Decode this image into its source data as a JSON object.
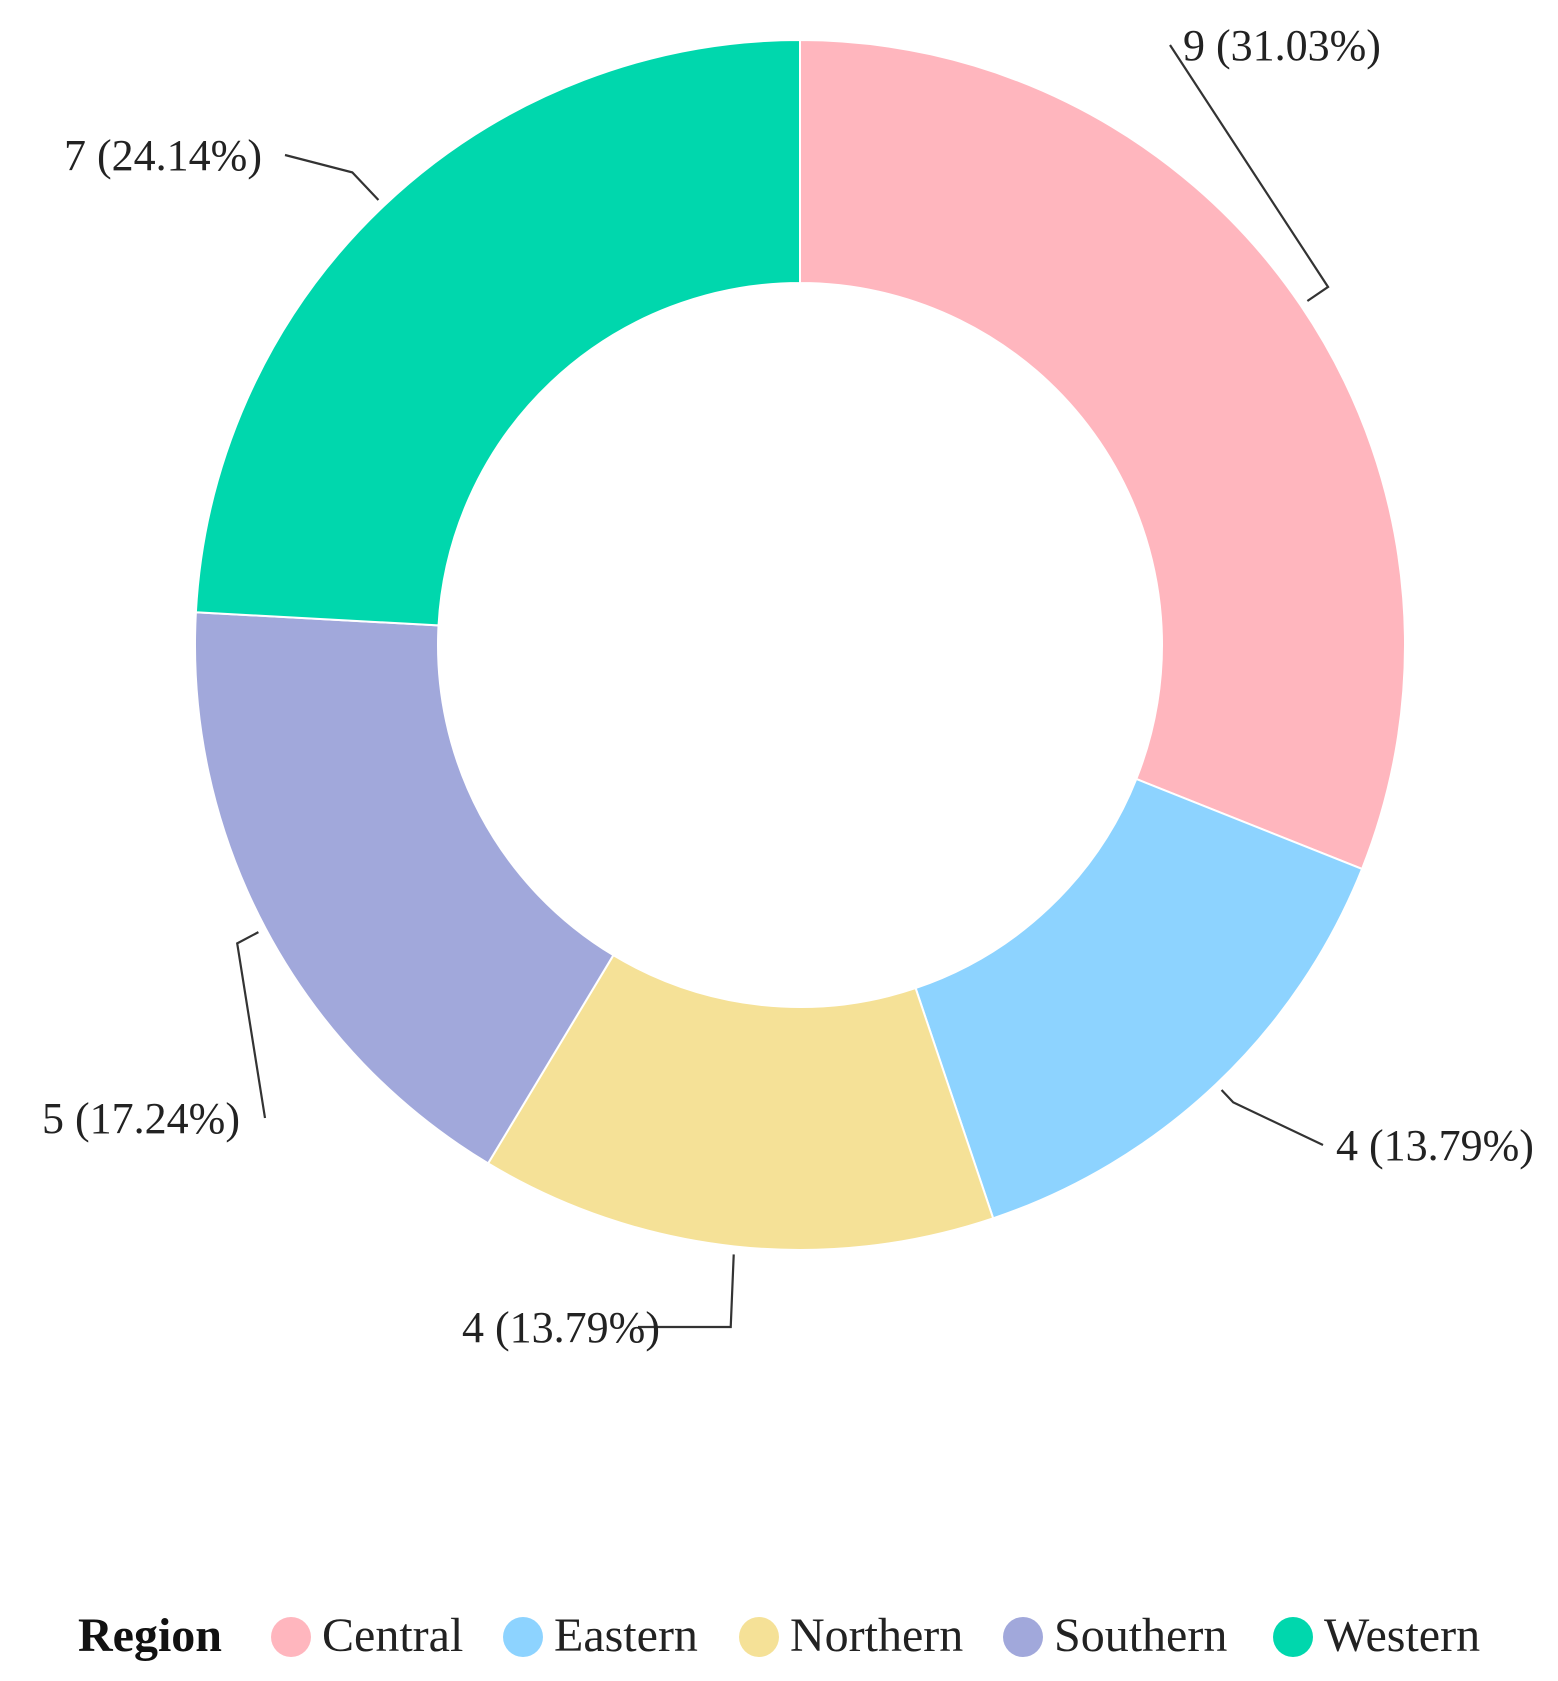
{
  "chart_data": {
    "type": "pie",
    "variant": "donut",
    "legend_title": "Region",
    "legend_position": "bottom",
    "categories": [
      "Central",
      "Eastern",
      "Northern",
      "Southern",
      "Western"
    ],
    "values": [
      9,
      4,
      4,
      5,
      7
    ],
    "percentages": [
      31.03,
      13.79,
      13.79,
      17.24,
      24.14
    ],
    "labels": [
      "9 (31.03%)",
      "4 (13.79%)",
      "4 (13.79%)",
      "5 (17.24%)",
      "7 (24.14%)"
    ],
    "colors": [
      "#FFB6BE",
      "#8DD3FF",
      "#F5E197",
      "#A1A8DB",
      "#00D7AD"
    ],
    "start_angle": "top (12 o'clock)",
    "direction": "clockwise"
  }
}
